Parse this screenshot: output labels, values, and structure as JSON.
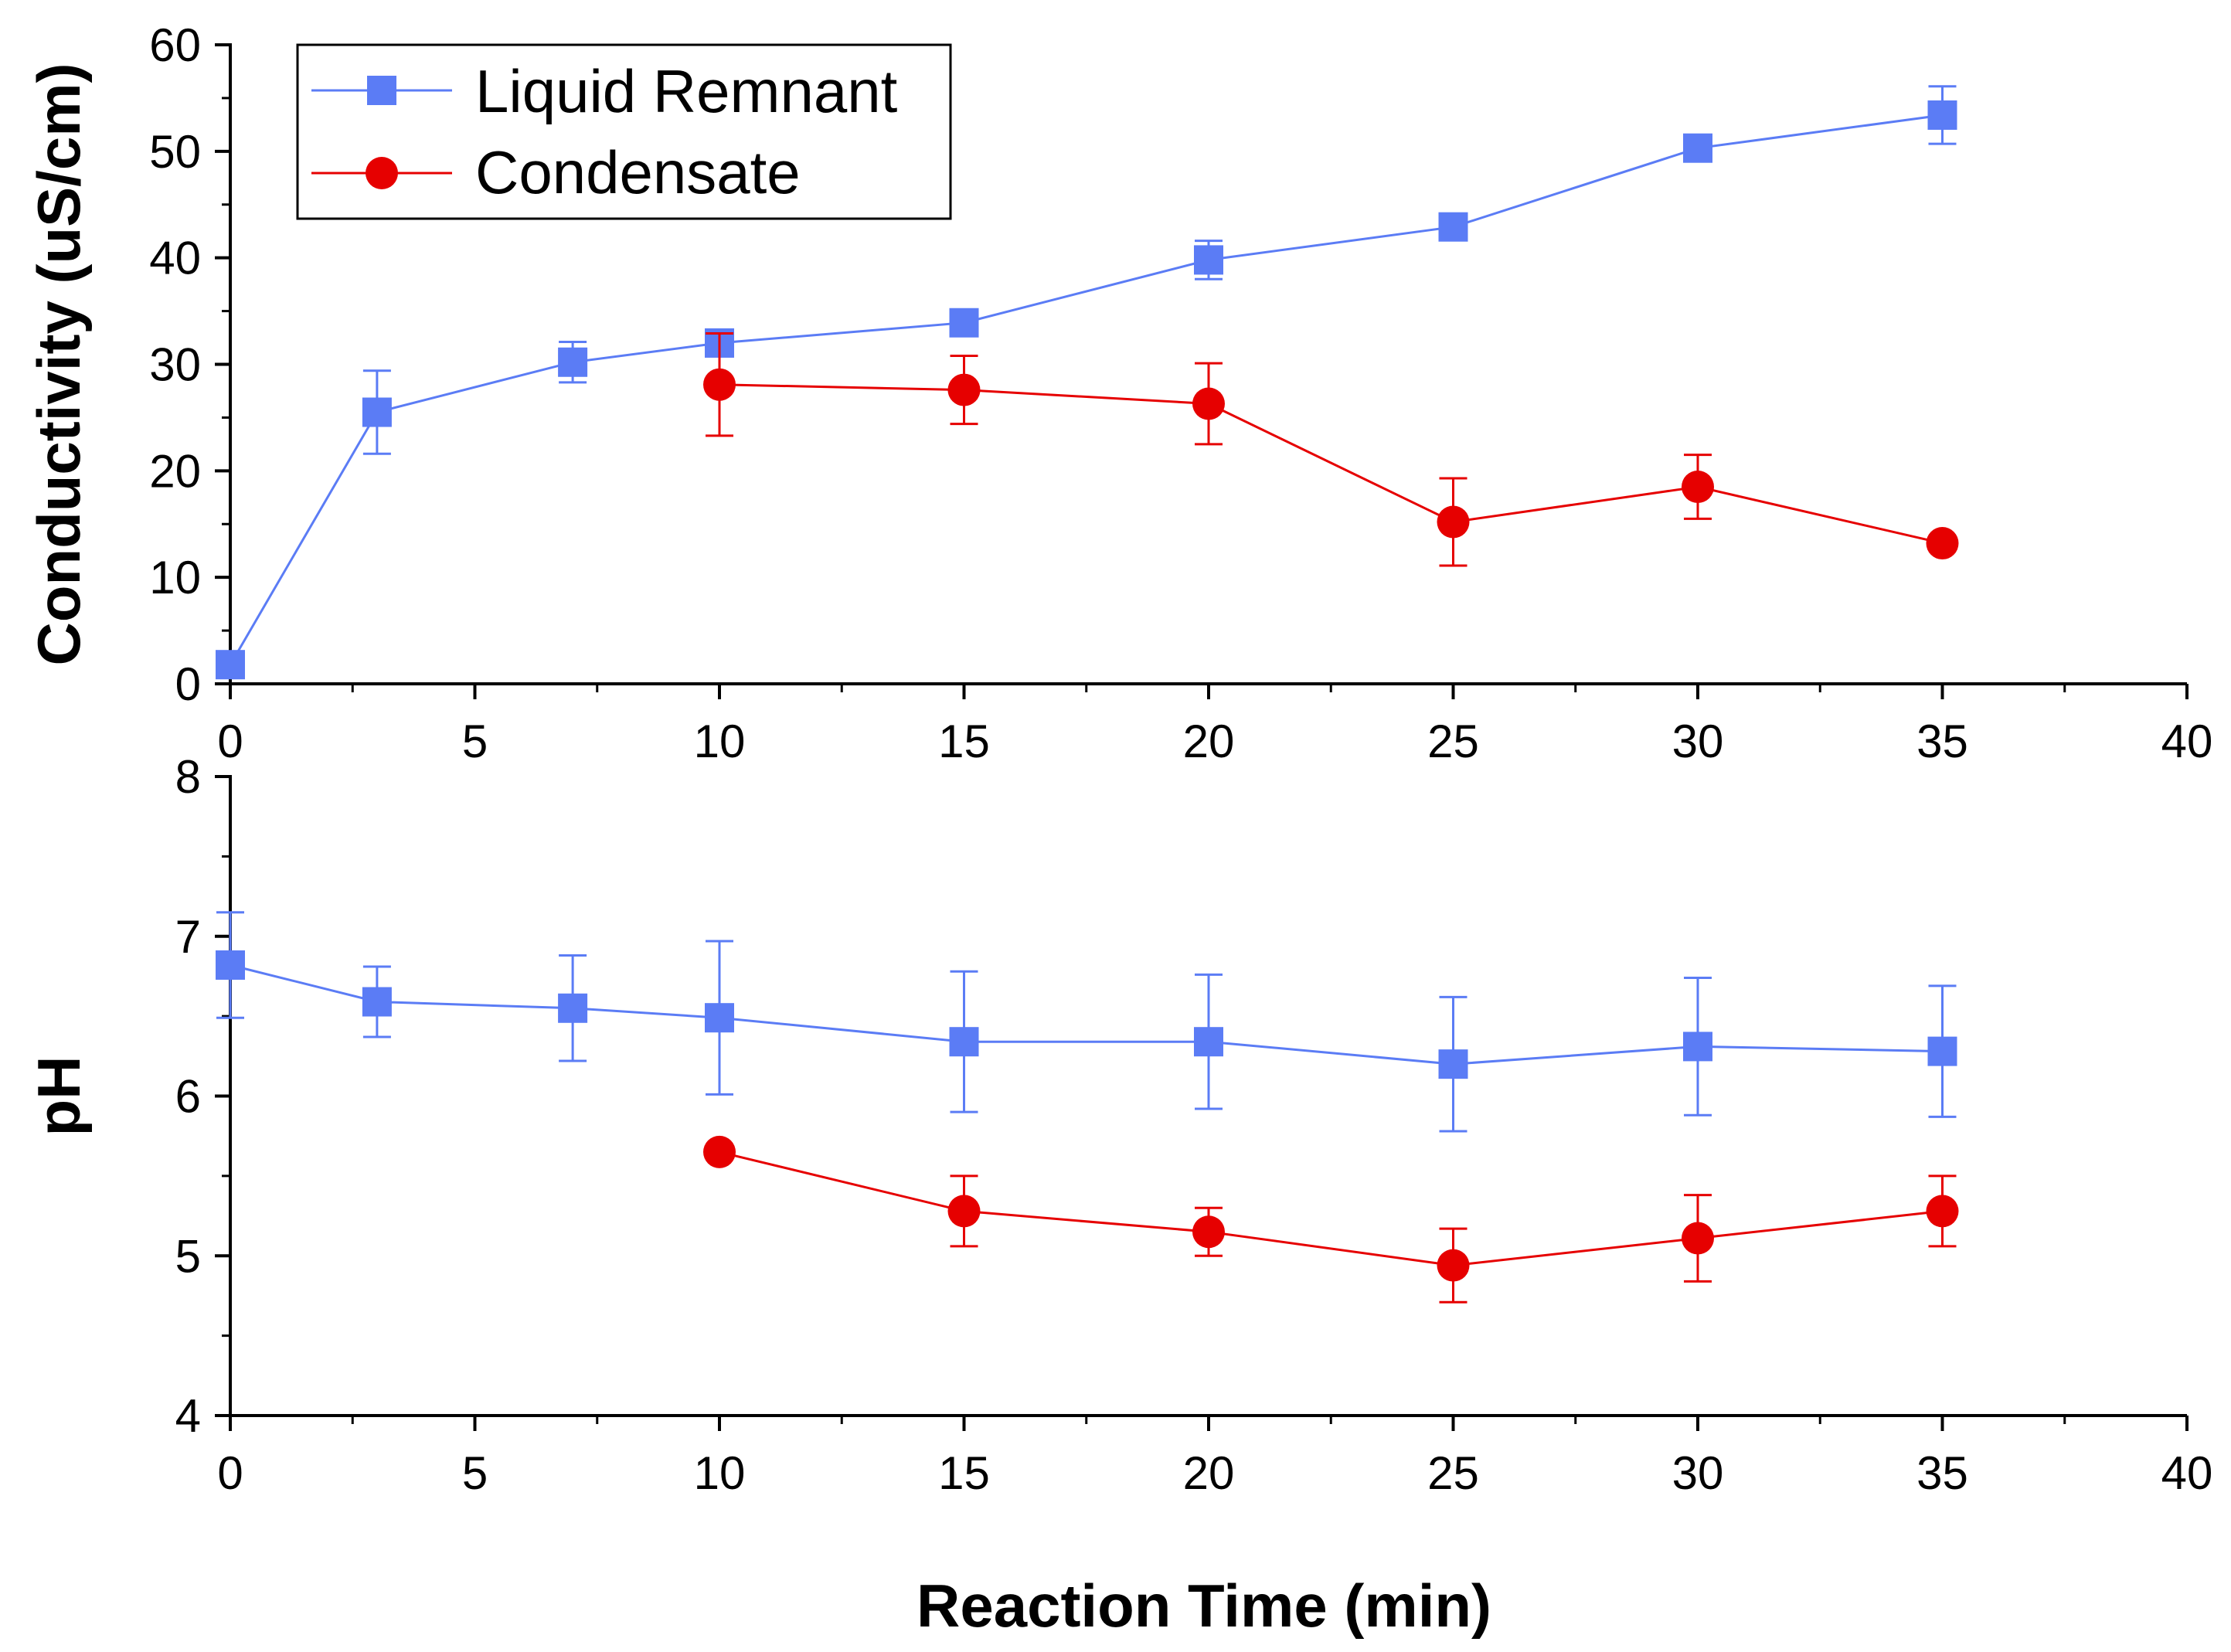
{
  "figure": {
    "xlabel": "Reaction Time (min)"
  },
  "legend": [
    {
      "name": "Liquid Remnant",
      "color": "#5b7cf5",
      "marker": "square"
    },
    {
      "name": "Condensate",
      "color": "#e60000",
      "marker": "circle"
    }
  ],
  "chart_data": [
    {
      "type": "line",
      "title": "",
      "xlabel": "",
      "ylabel": "Conductivity (uS/cm)",
      "xlim": [
        0,
        40
      ],
      "ylim": [
        0,
        60
      ],
      "xticks": [
        "0",
        "5",
        "10",
        "15",
        "20",
        "25",
        "30",
        "35",
        "40"
      ],
      "yticks": [
        "0",
        "10",
        "20",
        "30",
        "40",
        "50",
        "60"
      ],
      "series": [
        {
          "name": "Liquid Remnant",
          "color": "#5b7cf5",
          "marker": "square",
          "x": [
            0,
            3,
            7,
            10,
            15,
            20,
            25,
            30,
            35
          ],
          "y": [
            1.8,
            25.5,
            30.2,
            32.0,
            33.9,
            39.8,
            42.9,
            50.3,
            53.4
          ],
          "err": [
            0.3,
            3.9,
            1.9,
            1.0,
            0.6,
            1.8,
            0.6,
            0.5,
            2.7
          ]
        },
        {
          "name": "Condensate",
          "color": "#e60000",
          "marker": "circle",
          "x": [
            10,
            15,
            20,
            25,
            30,
            35
          ],
          "y": [
            28.1,
            27.6,
            26.3,
            15.2,
            18.5,
            13.2
          ],
          "err": [
            4.8,
            3.2,
            3.8,
            4.1,
            3.0,
            0.5
          ]
        }
      ]
    },
    {
      "type": "line",
      "title": "",
      "xlabel": "Reaction Time (min)",
      "ylabel": "pH",
      "xlim": [
        0,
        40
      ],
      "ylim": [
        4,
        8
      ],
      "xticks": [
        "0",
        "5",
        "10",
        "15",
        "20",
        "25",
        "30",
        "35",
        "40"
      ],
      "yticks": [
        "4",
        "5",
        "6",
        "7",
        "8"
      ],
      "series": [
        {
          "name": "Liquid Remnant",
          "color": "#5b7cf5",
          "marker": "square",
          "x": [
            0,
            3,
            7,
            10,
            15,
            20,
            25,
            30,
            35
          ],
          "y": [
            6.82,
            6.59,
            6.55,
            6.49,
            6.34,
            6.34,
            6.2,
            6.31,
            6.28
          ],
          "err": [
            0.33,
            0.22,
            0.33,
            0.48,
            0.44,
            0.42,
            0.42,
            0.43,
            0.41
          ]
        },
        {
          "name": "Condensate",
          "color": "#e60000",
          "marker": "circle",
          "x": [
            10,
            15,
            20,
            25,
            30,
            35
          ],
          "y": [
            5.65,
            5.28,
            5.15,
            4.94,
            5.11,
            5.28
          ],
          "err": [
            0.03,
            0.22,
            0.15,
            0.23,
            0.27,
            0.22
          ]
        }
      ]
    }
  ]
}
